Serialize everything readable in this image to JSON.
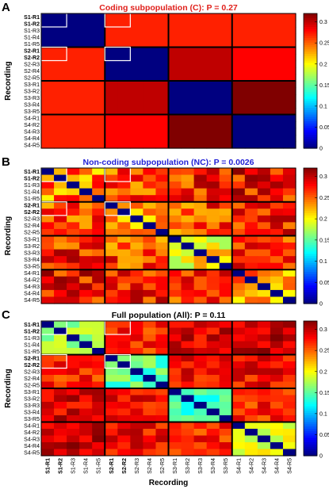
{
  "chart_data": [
    {
      "type": "heatmap",
      "panel_letter": "A",
      "title": "Coding subpopulation (C):   P = 0.27",
      "title_color": "#e0201b",
      "ylabel": "Recording",
      "xlabel": "",
      "show_xticks": false,
      "labels": [
        "S1-R1",
        "S1-R2",
        "S1-R3",
        "S1-R4",
        "S1-R5",
        "S2-R1",
        "S2-R2",
        "S2-R3",
        "S2-R4",
        "S2-R5",
        "S3-R1",
        "S3-R2",
        "S3-R3",
        "S3-R4",
        "S3-R5",
        "S4-R1",
        "S4-R2",
        "S4-R3",
        "S4-R4",
        "S4-R5"
      ],
      "bold_labels": [
        "S1-R1",
        "S1-R2",
        "S2-R1",
        "S2-R2"
      ],
      "block_matrix": [
        [
          0.0,
          0.27,
          0.27,
          0.27
        ],
        [
          0.27,
          0.0,
          0.3,
          0.28
        ],
        [
          0.27,
          0.3,
          0.0,
          0.32
        ],
        [
          0.27,
          0.28,
          0.32,
          0.0
        ]
      ],
      "colorbar": {
        "min": 0,
        "max": 0.32,
        "ticks": [
          0,
          0.05,
          0.1,
          0.15,
          0.2,
          0.25,
          0.3
        ]
      }
    },
    {
      "type": "heatmap",
      "panel_letter": "B",
      "title": "Non-coding subpopulation (NC):   P = 0.0026",
      "title_color": "#1f1fd6",
      "ylabel": "Recording",
      "xlabel": "",
      "show_xticks": false,
      "labels": [
        "S1-R1",
        "S1-R2",
        "S1-R3",
        "S1-R4",
        "S1-R5",
        "S2-R1",
        "S2-R2",
        "S2-R3",
        "S2-R4",
        "S2-R5",
        "S3-R1",
        "S3-R2",
        "S3-R3",
        "S3-R4",
        "S3-R5",
        "S4-R1",
        "S4-R2",
        "S4-R3",
        "S4-R4",
        "S4-R5"
      ],
      "bold_labels": [
        "S1-R1",
        "S1-R2",
        "S2-R1",
        "S2-R2"
      ],
      "block_matrix": [
        [
          0.24,
          0.26,
          0.27,
          0.28
        ],
        [
          0.26,
          0.22,
          0.26,
          0.27
        ],
        [
          0.27,
          0.26,
          0.21,
          0.27
        ],
        [
          0.28,
          0.27,
          0.27,
          0.24
        ]
      ],
      "noise": 0.04,
      "colorbar": {
        "min": 0,
        "max": 0.32,
        "ticks": [
          0,
          0.05,
          0.1,
          0.15,
          0.2,
          0.25,
          0.3
        ]
      }
    },
    {
      "type": "heatmap",
      "panel_letter": "C",
      "title": "Full population (All):   P = 0.11",
      "title_color": "#000000",
      "ylabel": "Recording",
      "xlabel": "Recording",
      "show_xticks": true,
      "labels": [
        "S1-R1",
        "S1-R2",
        "S1-R3",
        "S1-R4",
        "S1-R5",
        "S2-R1",
        "S2-R2",
        "S2-R3",
        "S2-R4",
        "S2-R5",
        "S3-R1",
        "S3-R2",
        "S3-R3",
        "S3-R4",
        "S3-R5",
        "S4-R1",
        "S4-R2",
        "S4-R3",
        "S4-R4",
        "S4-R5"
      ],
      "bold_labels": [
        "S1-R1",
        "S1-R2",
        "S2-R1",
        "S2-R2"
      ],
      "block_matrix": [
        [
          0.17,
          0.27,
          0.29,
          0.3
        ],
        [
          0.27,
          0.15,
          0.28,
          0.28
        ],
        [
          0.29,
          0.28,
          0.14,
          0.27
        ],
        [
          0.3,
          0.28,
          0.27,
          0.19
        ]
      ],
      "noise": 0.025,
      "colorbar": {
        "min": 0,
        "max": 0.32,
        "ticks": [
          0,
          0.05,
          0.1,
          0.15,
          0.2,
          0.25,
          0.3
        ]
      }
    }
  ]
}
